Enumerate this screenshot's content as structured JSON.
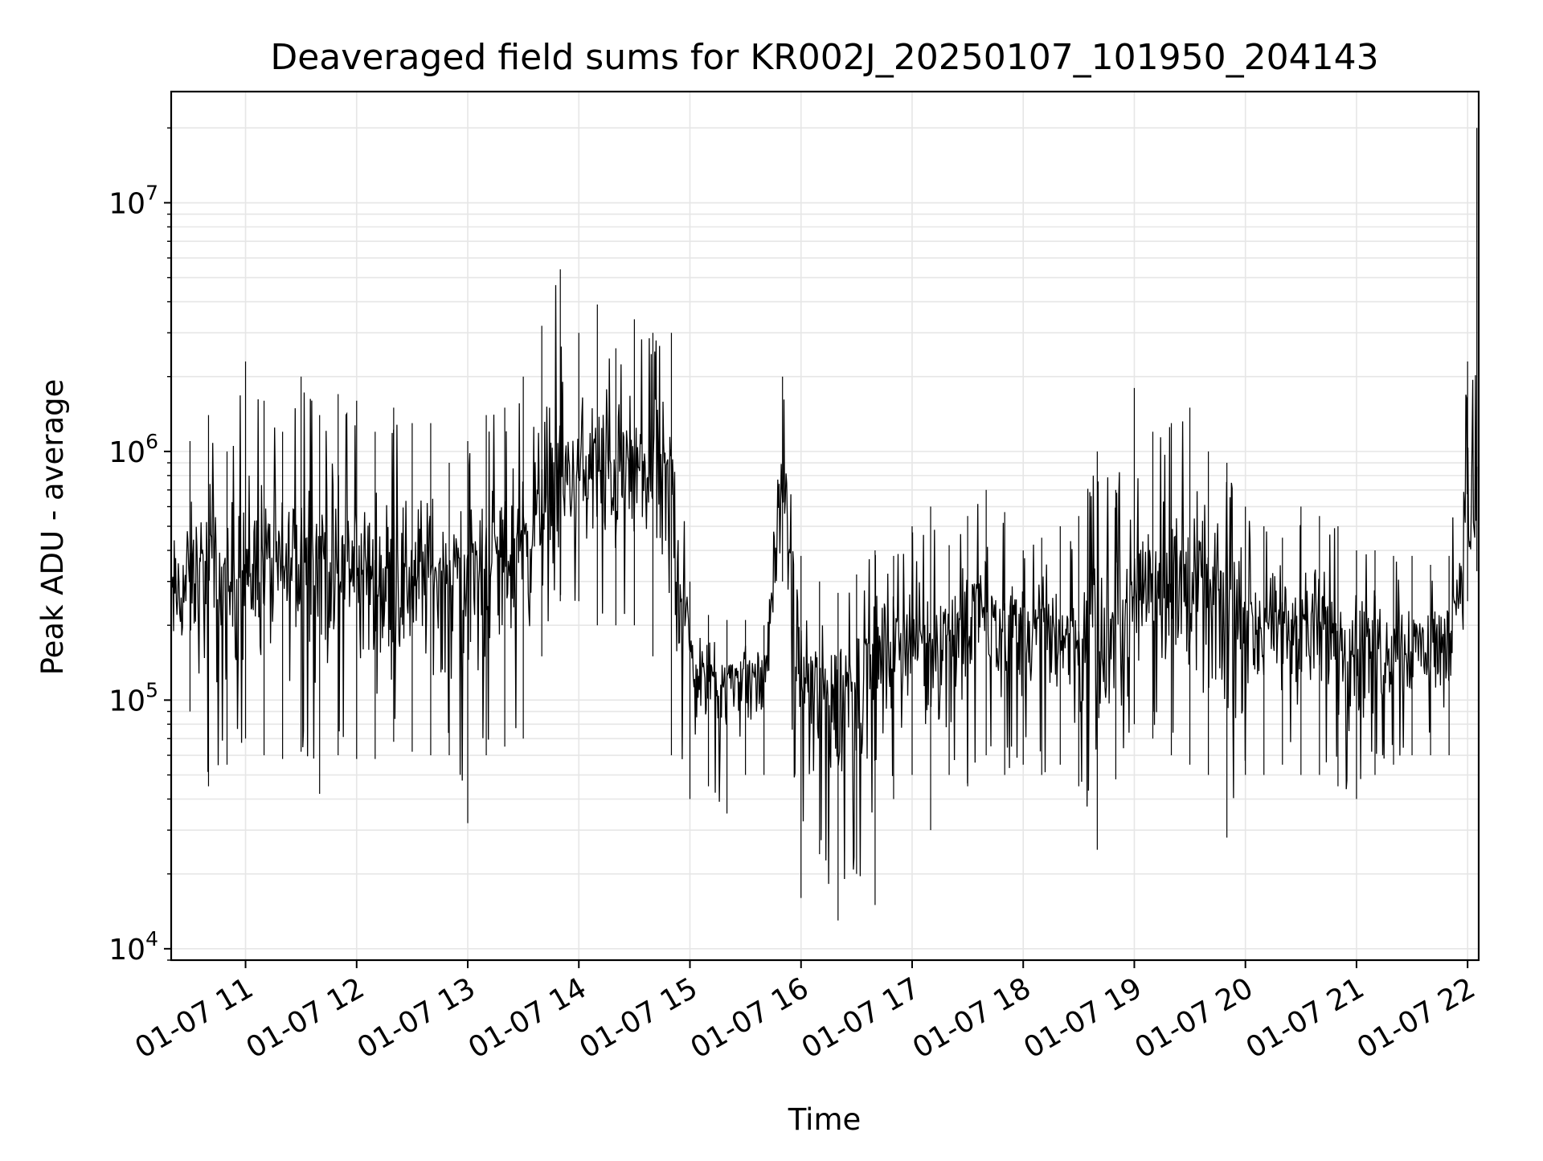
{
  "chart_data": {
    "type": "line",
    "title": "Deaveraged field sums for KR002J_20250107_101950_204143",
    "xlabel": "Time",
    "ylabel": "Peak ADU - average",
    "yscale": "log",
    "ylim": [
      9000,
      28000000
    ],
    "xlim": [
      "01-07 10:19:50",
      "01-07 22:06:00"
    ],
    "grid": true,
    "x_tick_labels": [
      "01-07 11",
      "01-07 12",
      "01-07 13",
      "01-07 14",
      "01-07 15",
      "01-07 16",
      "01-07 17",
      "01-07 18",
      "01-07 19",
      "01-07 20",
      "01-07 21",
      "01-07 22"
    ],
    "y_tick_labels": [
      {
        "value": 10000,
        "base": "10",
        "exp": "4"
      },
      {
        "value": 100000,
        "base": "10",
        "exp": "5"
      },
      {
        "value": 1000000,
        "base": "10",
        "exp": "6"
      },
      {
        "value": 10000000,
        "base": "10",
        "exp": "7"
      }
    ],
    "colors": {
      "line": "#000000",
      "grid": "#e6e6e6",
      "axes": "#000000"
    },
    "series": [
      {
        "x": [
          "01-07 10:20",
          "01-07 10:30",
          "01-07 10:40",
          "01-07 10:50",
          "01-07 11:00",
          "01-07 11:10",
          "01-07 11:20",
          "01-07 11:30",
          "01-07 11:40",
          "01-07 11:50",
          "01-07 12:00",
          "01-07 12:10",
          "01-07 12:20",
          "01-07 12:30",
          "01-07 12:40",
          "01-07 12:50",
          "01-07 13:00",
          "01-07 13:10",
          "01-07 13:20",
          "01-07 13:30",
          "01-07 13:40",
          "01-07 13:50",
          "01-07 14:00",
          "01-07 14:10",
          "01-07 14:20",
          "01-07 14:30",
          "01-07 14:40",
          "01-07 14:50",
          "01-07 15:00",
          "01-07 15:10",
          "01-07 15:20",
          "01-07 15:30",
          "01-07 15:40",
          "01-07 15:50",
          "01-07 16:00",
          "01-07 16:10",
          "01-07 16:20",
          "01-07 16:30",
          "01-07 16:40",
          "01-07 16:50",
          "01-07 17:00",
          "01-07 17:10",
          "01-07 17:20",
          "01-07 17:30",
          "01-07 17:40",
          "01-07 17:50",
          "01-07 18:00",
          "01-07 18:10",
          "01-07 18:20",
          "01-07 18:30",
          "01-07 18:40",
          "01-07 18:50",
          "01-07 19:00",
          "01-07 19:10",
          "01-07 19:20",
          "01-07 19:30",
          "01-07 19:40",
          "01-07 19:50",
          "01-07 20:00",
          "01-07 20:10",
          "01-07 20:20",
          "01-07 20:30",
          "01-07 20:40",
          "01-07 20:50",
          "01-07 21:00",
          "01-07 21:10",
          "01-07 21:20",
          "01-07 21:30",
          "01-07 21:40",
          "01-07 21:50",
          "01-07 22:00",
          "01-07 22:05"
        ],
        "typical": [
          250000,
          300000,
          320000,
          280000,
          330000,
          350000,
          320000,
          380000,
          400000,
          350000,
          330000,
          310000,
          300000,
          320000,
          340000,
          320000,
          330000,
          340000,
          380000,
          450000,
          600000,
          750000,
          800000,
          850000,
          800000,
          800000,
          750000,
          700000,
          150000,
          120000,
          120000,
          130000,
          120000,
          800000,
          130000,
          100000,
          110000,
          130000,
          150000,
          170000,
          180000,
          170000,
          190000,
          220000,
          230000,
          200000,
          190000,
          200000,
          190000,
          170000,
          150000,
          150000,
          300000,
          330000,
          300000,
          280000,
          250000,
          230000,
          200000,
          200000,
          200000,
          200000,
          190000,
          180000,
          180000,
          180000,
          170000,
          170000,
          170000,
          170000,
          500000,
          550000
        ],
        "max": [
          700000,
          1100000,
          1400000,
          1000000,
          2300000,
          1600000,
          1200000,
          2000000,
          1400000,
          1700000,
          1600000,
          1200000,
          1500000,
          1300000,
          1300000,
          900000,
          1100000,
          1400000,
          1500000,
          2000000,
          3200000,
          5400000,
          3000000,
          3900000,
          2600000,
          3400000,
          3000000,
          3000000,
          300000,
          220000,
          210000,
          210000,
          200000,
          2000000,
          380000,
          300000,
          270000,
          320000,
          400000,
          380000,
          500000,
          600000,
          420000,
          550000,
          700000,
          570000,
          400000,
          450000,
          500000,
          550000,
          1000000,
          700000,
          1800000,
          1200000,
          1300000,
          1500000,
          1000000,
          900000,
          600000,
          500000,
          450000,
          600000,
          550000,
          500000,
          400000,
          400000,
          380000,
          380000,
          350000,
          380000,
          2300000,
          20000000
        ],
        "min": [
          75000,
          90000,
          45000,
          55000,
          70000,
          60000,
          58000,
          62000,
          42000,
          60000,
          58000,
          58000,
          68000,
          62000,
          60000,
          60000,
          32000,
          60000,
          65000,
          70000,
          150000,
          250000,
          250000,
          200000,
          200000,
          200000,
          150000,
          60000,
          40000,
          45000,
          35000,
          50000,
          50000,
          300000,
          16000,
          24000,
          13000,
          20000,
          15000,
          40000,
          50000,
          30000,
          50000,
          45000,
          60000,
          50000,
          55000,
          50000,
          55000,
          45000,
          25000,
          48000,
          80000,
          70000,
          60000,
          55000,
          50000,
          28000,
          50000,
          50000,
          55000,
          50000,
          50000,
          45000,
          40000,
          50000,
          55000,
          60000,
          60000,
          60000,
          250000,
          330000
        ]
      }
    ]
  }
}
